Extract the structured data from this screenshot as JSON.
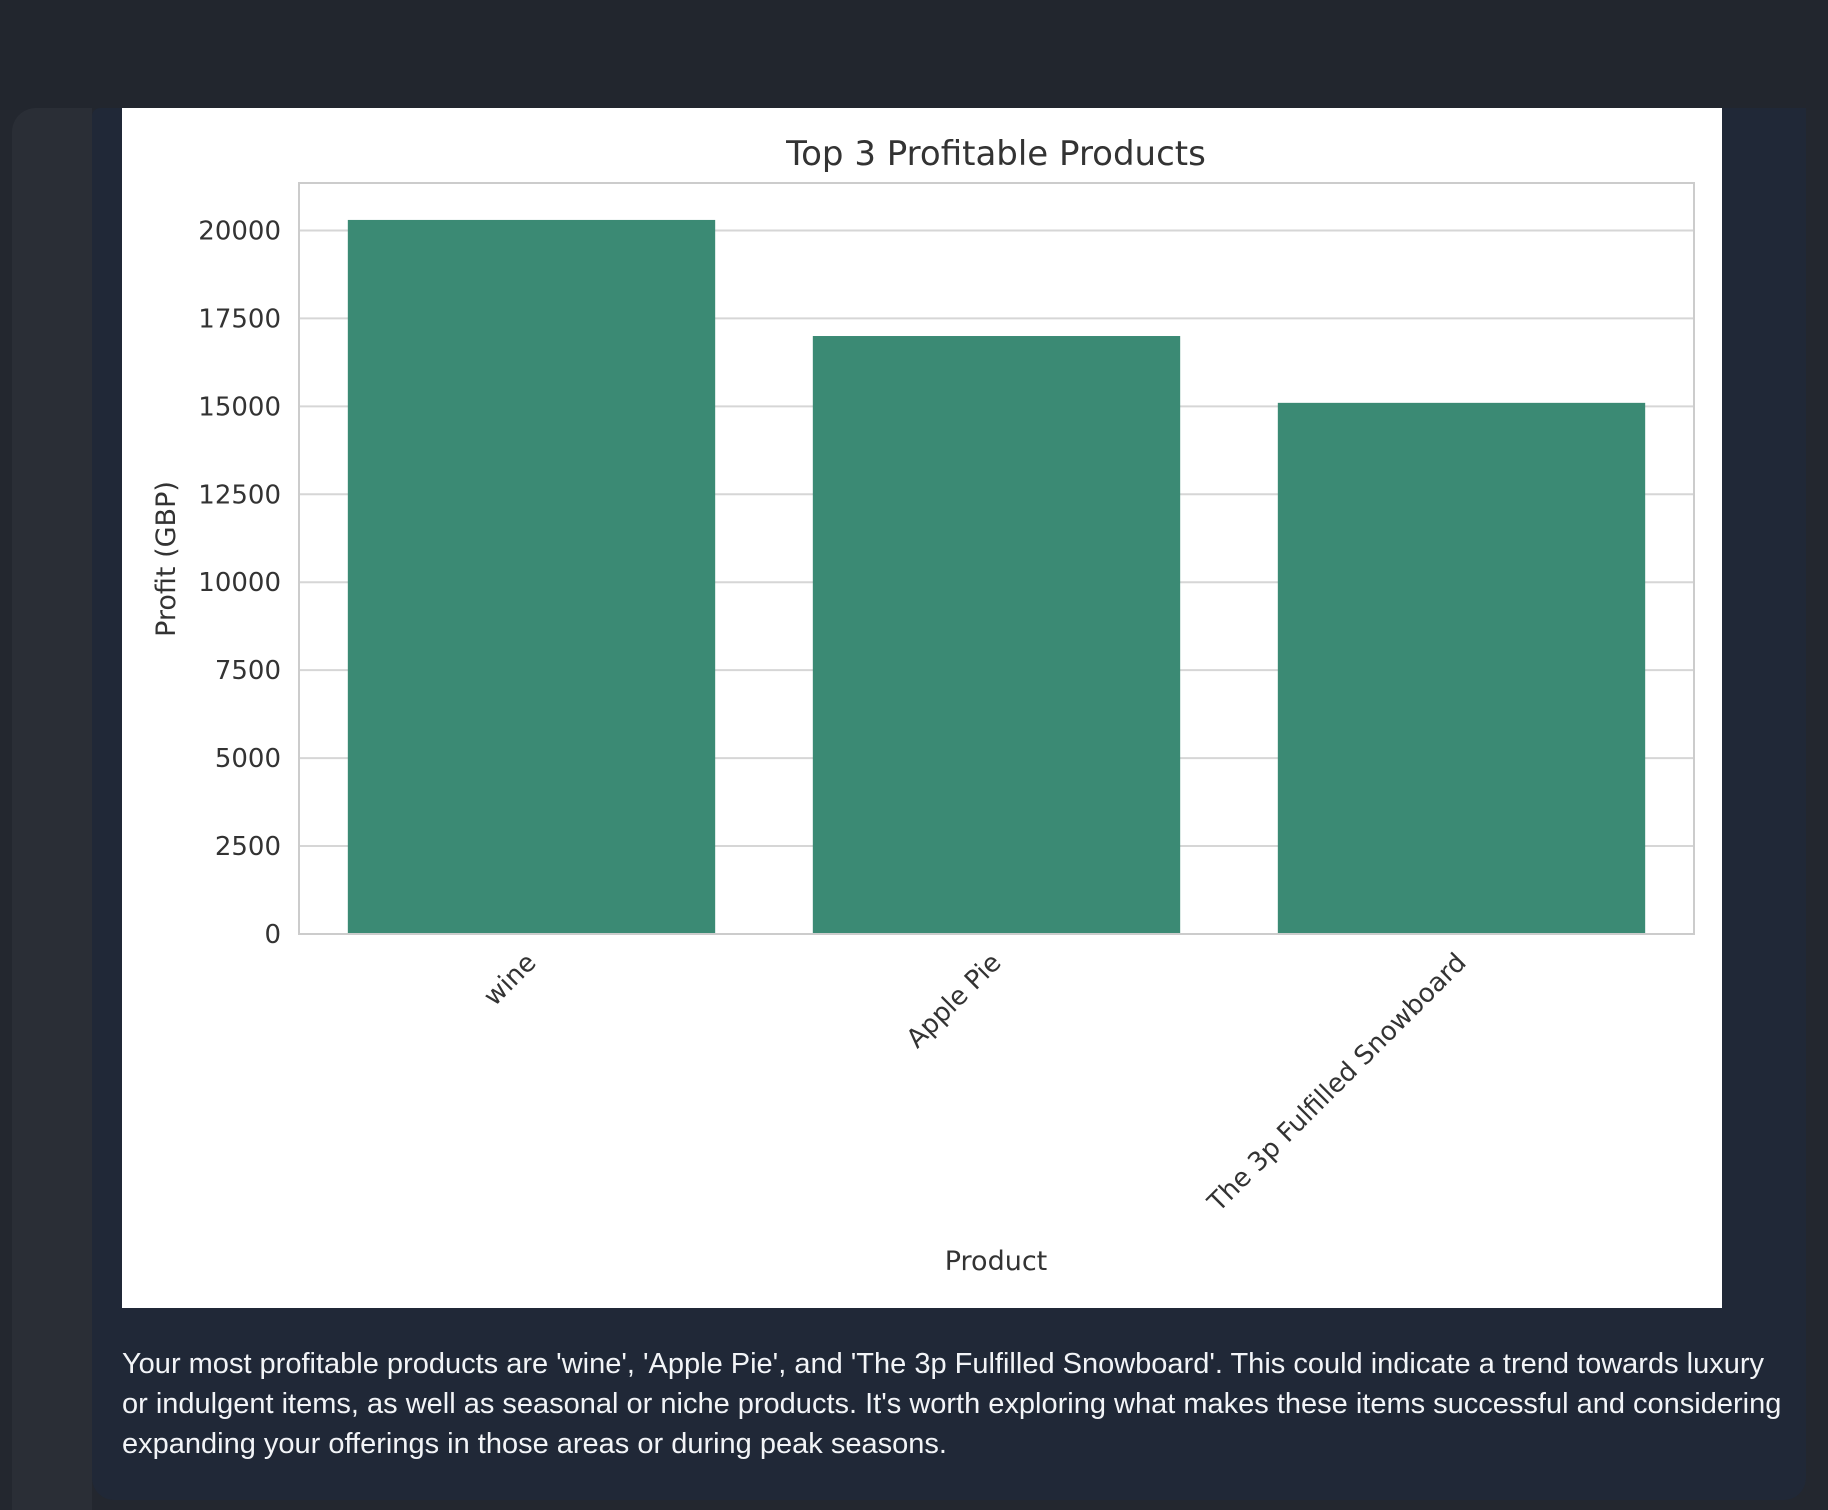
{
  "chart_data": {
    "type": "bar",
    "title": "Top 3 Profitable Products",
    "xlabel": "Product",
    "ylabel": "Profit (GBP)",
    "categories": [
      "wine",
      "Apple Pie",
      "The 3p Fulfilled Snowboard"
    ],
    "values": [
      20300,
      17000,
      15100
    ],
    "ylim": [
      0,
      21350
    ],
    "yticks": [
      0,
      2500,
      5000,
      7500,
      10000,
      12500,
      15000,
      17500,
      20000
    ],
    "grid": true,
    "bar_color": "#3b8a74"
  },
  "message": {
    "text": "Your most profitable products are 'wine', 'Apple Pie', and 'The 3p Fulfilled Snowboard'. This could indicate a trend towards luxury or indulgent items, as well as seasonal or niche products. It's worth exploring what makes these items successful and considering expanding your offerings in those areas or during peak seasons."
  }
}
